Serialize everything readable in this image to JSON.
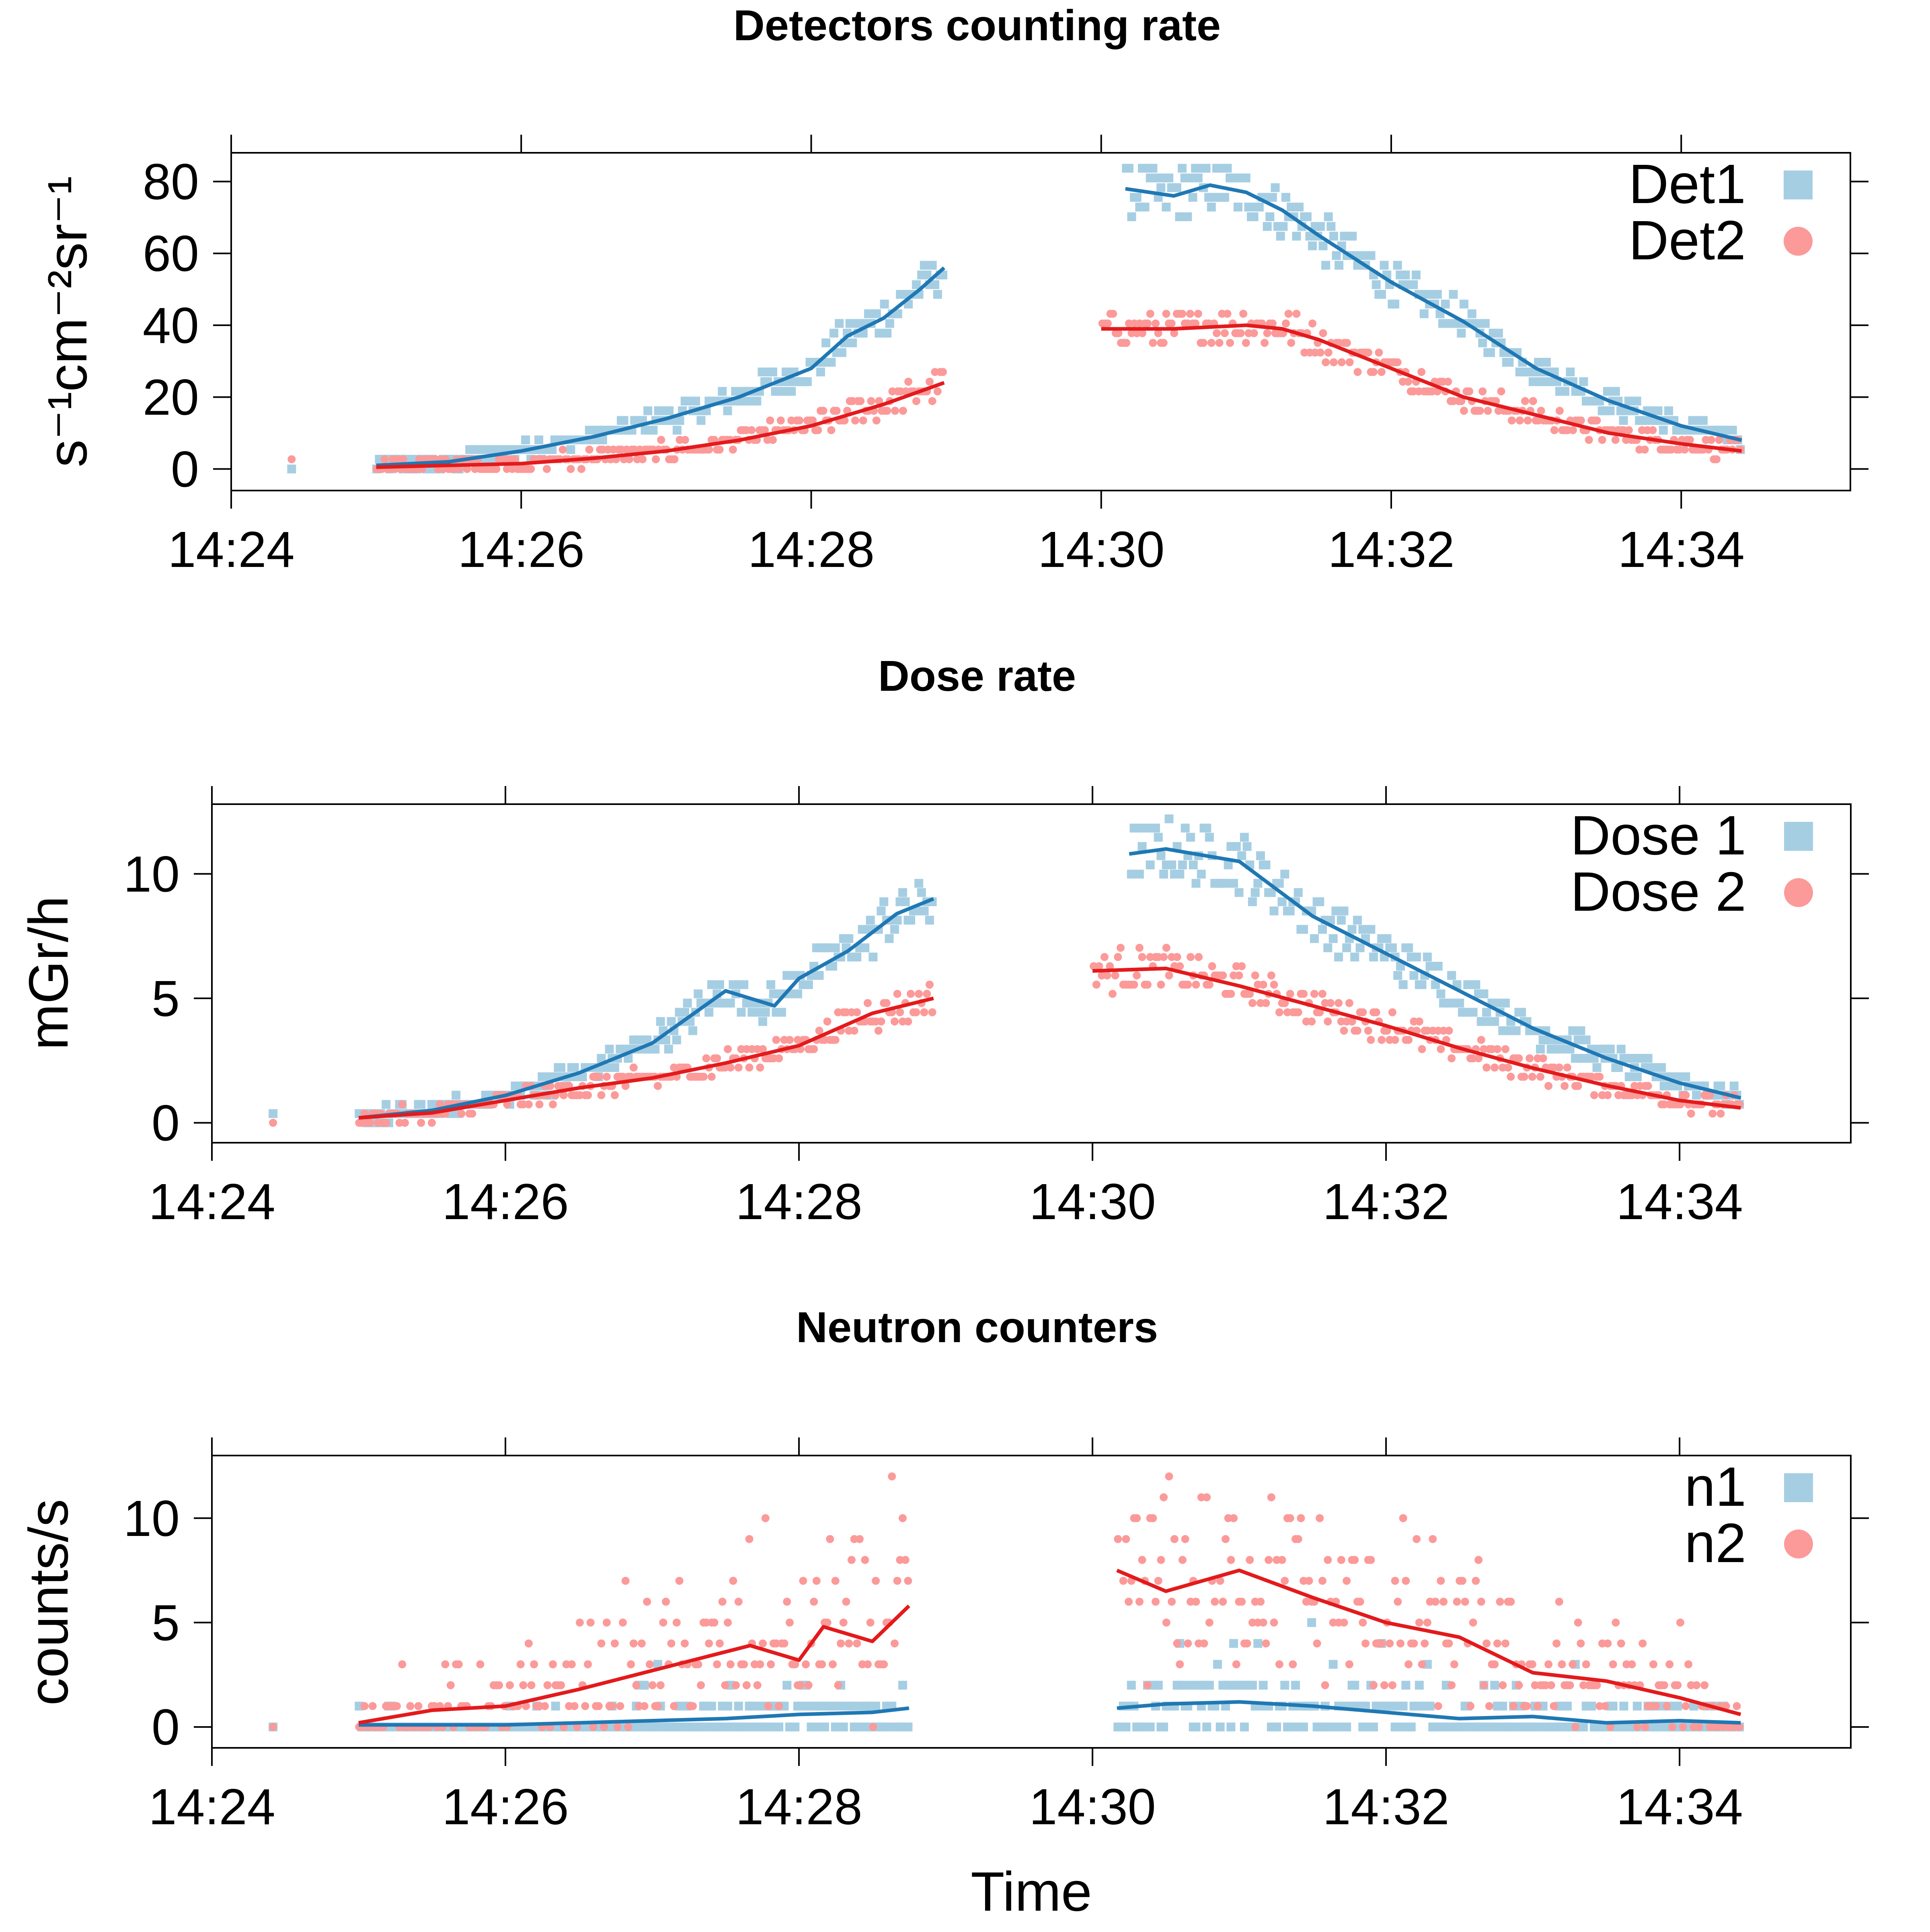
{
  "colors": {
    "series1_points": "#a6cee3",
    "series1_line": "#1f78b4",
    "series2_points": "#fb9a99",
    "series2_line": "#e31a1c",
    "axis": "#000000"
  },
  "xlabel": "Time",
  "chart_data": [
    {
      "type": "scatter",
      "title": "Detectors counting rate",
      "ylabel": "s⁻¹cm⁻²sr⁻¹",
      "xlim": [
        "14:24:00",
        "14:35:10"
      ],
      "ylim": [
        -6,
        88
      ],
      "xticks": [
        "14:24",
        "14:26",
        "14:28",
        "14:30",
        "14:32",
        "14:34"
      ],
      "yticks": [
        0,
        20,
        40,
        60,
        80
      ],
      "legend_position": "top-right",
      "gap": [
        "14:29:00",
        "14:30:00"
      ],
      "series": [
        {
          "name": "Det1",
          "marker": "square",
          "smooth": [
            [
              "14:24:25",
              0.5
            ],
            [
              "14:25:00",
              1
            ],
            [
              "14:25:30",
              2
            ],
            [
              "14:26:00",
              5
            ],
            [
              "14:26:30",
              9
            ],
            [
              "14:27:00",
              14
            ],
            [
              "14:27:30",
              20
            ],
            [
              "14:28:00",
              28
            ],
            [
              "14:28:15",
              37
            ],
            [
              "14:28:30",
              42
            ],
            [
              "14:28:45",
              50
            ],
            [
              "14:28:55",
              56
            ],
            [
              "14:30:10",
              78
            ],
            [
              "14:30:30",
              76
            ],
            [
              "14:30:45",
              79
            ],
            [
              "14:31:00",
              77
            ],
            [
              "14:31:15",
              72
            ],
            [
              "14:31:30",
              65
            ],
            [
              "14:32:00",
              52
            ],
            [
              "14:32:30",
              41
            ],
            [
              "14:33:00",
              28
            ],
            [
              "14:33:30",
              19
            ],
            [
              "14:34:00",
              12
            ],
            [
              "14:34:25",
              8
            ]
          ]
        },
        {
          "name": "Det2",
          "marker": "circle",
          "smooth": [
            [
              "14:24:25",
              0
            ],
            [
              "14:25:00",
              0.5
            ],
            [
              "14:25:30",
              1
            ],
            [
              "14:26:00",
              1.5
            ],
            [
              "14:26:30",
              3
            ],
            [
              "14:27:00",
              5
            ],
            [
              "14:27:30",
              8
            ],
            [
              "14:28:00",
              12
            ],
            [
              "14:28:30",
              18
            ],
            [
              "14:28:55",
              24
            ],
            [
              "14:30:00",
              39
            ],
            [
              "14:30:30",
              39
            ],
            [
              "14:31:00",
              40
            ],
            [
              "14:31:15",
              39
            ],
            [
              "14:31:30",
              36
            ],
            [
              "14:32:00",
              28
            ],
            [
              "14:32:30",
              20
            ],
            [
              "14:33:00",
              15
            ],
            [
              "14:33:30",
              10
            ],
            [
              "14:34:00",
              7
            ],
            [
              "14:34:25",
              5
            ]
          ]
        }
      ]
    },
    {
      "type": "scatter",
      "title": "Dose rate",
      "ylabel": "mGr/h",
      "xlim": [
        "14:24:00",
        "14:35:10"
      ],
      "ylim": [
        -0.8,
        12.8
      ],
      "xticks": [
        "14:24",
        "14:26",
        "14:28",
        "14:30",
        "14:32",
        "14:34"
      ],
      "yticks": [
        0,
        5,
        10
      ],
      "legend_position": "top-right",
      "gap": [
        "14:29:00",
        "14:30:00"
      ],
      "series": [
        {
          "name": "Dose 1",
          "marker": "square",
          "smooth": [
            [
              "14:24:25",
              0.1
            ],
            [
              "14:25:00",
              0.2
            ],
            [
              "14:25:30",
              0.5
            ],
            [
              "14:26:00",
              1.1
            ],
            [
              "14:26:30",
              2
            ],
            [
              "14:27:00",
              3.2
            ],
            [
              "14:27:30",
              5.3
            ],
            [
              "14:27:50",
              4.7
            ],
            [
              "14:28:00",
              5.8
            ],
            [
              "14:28:20",
              6.9
            ],
            [
              "14:28:40",
              8.4
            ],
            [
              "14:28:55",
              9
            ],
            [
              "14:30:15",
              10.8
            ],
            [
              "14:30:30",
              11
            ],
            [
              "14:31:00",
              10.5
            ],
            [
              "14:31:30",
              8.3
            ],
            [
              "14:32:00",
              6.8
            ],
            [
              "14:32:30",
              5.3
            ],
            [
              "14:33:00",
              3.8
            ],
            [
              "14:33:30",
              2.6
            ],
            [
              "14:34:00",
              1.6
            ],
            [
              "14:34:25",
              1
            ]
          ]
        },
        {
          "name": "Dose 2",
          "marker": "circle",
          "smooth": [
            [
              "14:24:25",
              0
            ],
            [
              "14:25:00",
              0.2
            ],
            [
              "14:25:30",
              0.4
            ],
            [
              "14:26:00",
              0.9
            ],
            [
              "14:26:30",
              1.4
            ],
            [
              "14:27:00",
              1.8
            ],
            [
              "14:27:30",
              2.4
            ],
            [
              "14:28:00",
              3.1
            ],
            [
              "14:28:30",
              4.4
            ],
            [
              "14:28:55",
              5
            ],
            [
              "14:30:00",
              6.1
            ],
            [
              "14:30:30",
              6.2
            ],
            [
              "14:31:00",
              5.5
            ],
            [
              "14:31:30",
              4.7
            ],
            [
              "14:32:00",
              3.9
            ],
            [
              "14:32:30",
              3
            ],
            [
              "14:33:00",
              2.2
            ],
            [
              "14:33:30",
              1.5
            ],
            [
              "14:34:00",
              0.9
            ],
            [
              "14:34:25",
              0.6
            ]
          ]
        }
      ]
    },
    {
      "type": "scatter",
      "title": "Neutron counters",
      "ylabel": "counts/s",
      "xlim": [
        "14:24:00",
        "14:35:10"
      ],
      "ylim": [
        -1,
        13
      ],
      "xticks": [
        "14:24",
        "14:26",
        "14:28",
        "14:30",
        "14:32",
        "14:34"
      ],
      "yticks": [
        0,
        5,
        10
      ],
      "legend_position": "top-right",
      "gap": [
        "14:29:00",
        "14:30:00"
      ],
      "series": [
        {
          "name": "n1",
          "marker": "square",
          "smooth": [
            [
              "14:24:25",
              0.1
            ],
            [
              "14:25:00",
              0.1
            ],
            [
              "14:25:30",
              0.1
            ],
            [
              "14:26:00",
              0.1
            ],
            [
              "14:26:30",
              0.2
            ],
            [
              "14:27:00",
              0.3
            ],
            [
              "14:27:30",
              0.4
            ],
            [
              "14:28:00",
              0.6
            ],
            [
              "14:28:30",
              0.7
            ],
            [
              "14:28:45",
              0.9
            ],
            [
              "14:30:10",
              0.9
            ],
            [
              "14:30:30",
              1.1
            ],
            [
              "14:31:00",
              1.2
            ],
            [
              "14:31:30",
              1
            ],
            [
              "14:32:00",
              0.7
            ],
            [
              "14:32:30",
              0.4
            ],
            [
              "14:33:00",
              0.5
            ],
            [
              "14:33:30",
              0.2
            ],
            [
              "14:34:00",
              0.3
            ],
            [
              "14:34:25",
              0.2
            ]
          ]
        },
        {
          "name": "n2",
          "marker": "circle",
          "smooth": [
            [
              "14:24:25",
              0.1
            ],
            [
              "14:25:00",
              0.2
            ],
            [
              "14:25:30",
              0.8
            ],
            [
              "14:26:00",
              1
            ],
            [
              "14:26:30",
              1.8
            ],
            [
              "14:27:00",
              2.7
            ],
            [
              "14:27:20",
              3.3
            ],
            [
              "14:27:40",
              3.9
            ],
            [
              "14:28:00",
              3.2
            ],
            [
              "14:28:10",
              4.8
            ],
            [
              "14:28:30",
              4.1
            ],
            [
              "14:28:45",
              5.8
            ],
            [
              "14:30:10",
              7.5
            ],
            [
              "14:30:30",
              6.5
            ],
            [
              "14:31:00",
              7.5
            ],
            [
              "14:31:30",
              6.2
            ],
            [
              "14:32:00",
              5
            ],
            [
              "14:32:30",
              4.3
            ],
            [
              "14:33:00",
              2.6
            ],
            [
              "14:33:30",
              2.2
            ],
            [
              "14:34:00",
              1.4
            ],
            [
              "14:34:25",
              0.6
            ]
          ]
        }
      ]
    }
  ]
}
